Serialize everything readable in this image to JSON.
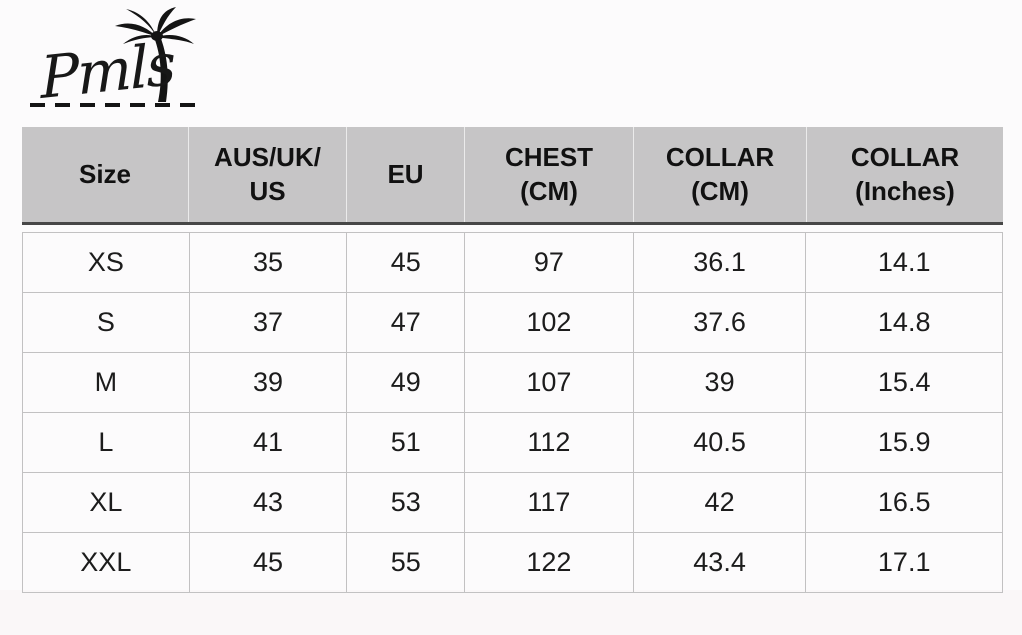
{
  "logo": {
    "text": "Pmls",
    "icon": "palm-tree-icon",
    "color": "#181818"
  },
  "table": {
    "columns": [
      {
        "lines": [
          "Size"
        ]
      },
      {
        "lines": [
          "AUS/UK/",
          "US"
        ]
      },
      {
        "lines": [
          "EU"
        ]
      },
      {
        "lines": [
          "CHEST",
          "(CM)"
        ]
      },
      {
        "lines": [
          "COLLAR",
          "(CM)"
        ]
      },
      {
        "lines": [
          "COLLAR",
          "(Inches)"
        ]
      }
    ],
    "rows": [
      [
        "XS",
        "35",
        "45",
        "97",
        "36.1",
        "14.1"
      ],
      [
        "S",
        "37",
        "47",
        "102",
        "37.6",
        "14.8"
      ],
      [
        "M",
        "39",
        "49",
        "107",
        "39",
        "15.4"
      ],
      [
        "L",
        "41",
        "51",
        "112",
        "40.5",
        "15.9"
      ],
      [
        "XL",
        "43",
        "53",
        "117",
        "42",
        "16.5"
      ],
      [
        "XXL",
        "45",
        "55",
        "122",
        "43.4",
        "17.1"
      ]
    ],
    "colors": {
      "header_bg": "#c6c5c6",
      "header_text": "#111111",
      "header_border": "#474747",
      "body_text": "#1c1c1c",
      "grid_line": "#c2c1c2"
    }
  }
}
